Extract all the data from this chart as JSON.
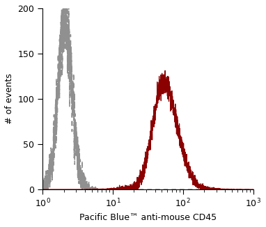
{
  "title": "",
  "xlabel": "Pacific Blue™ anti-mouse CD45",
  "ylabel": "# of events",
  "xlim_log": [
    1,
    1000
  ],
  "ylim": [
    0,
    200
  ],
  "yticks": [
    0,
    50,
    100,
    150,
    200
  ],
  "gray_color": "#909090",
  "red_color": "#8B0000",
  "gray_peak_log": 0.32,
  "gray_peak_height": 190,
  "gray_sigma_log": 0.1,
  "red_peak_log": 1.72,
  "red_peak_height": 118,
  "red_sigma_log": 0.18,
  "background_color": "#ffffff",
  "figsize": [
    3.82,
    3.26
  ],
  "dpi": 100
}
